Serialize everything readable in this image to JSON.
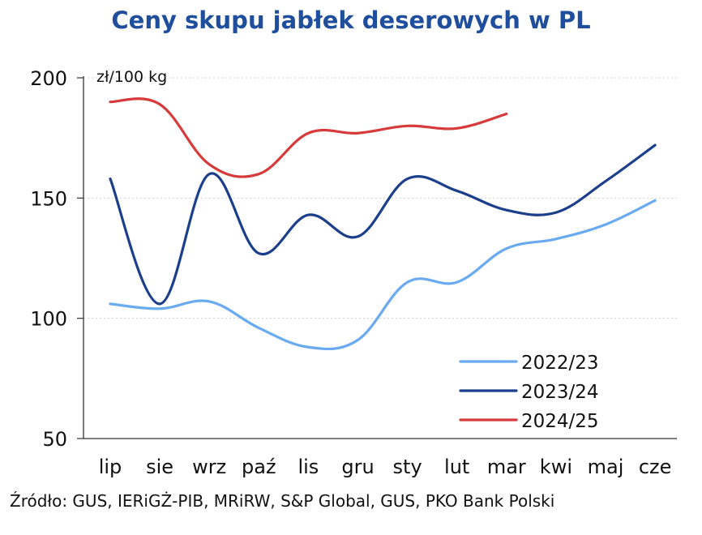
{
  "chart_data": {
    "type": "line",
    "title": "Ceny skupu jabłek deserowych w PL",
    "ylabel": "zł/100 kg",
    "xlabel": "",
    "categories": [
      "lip",
      "sie",
      "wrz",
      "paź",
      "lis",
      "gru",
      "sty",
      "lut",
      "mar",
      "kwi",
      "maj",
      "cze"
    ],
    "ylim": [
      50,
      200
    ],
    "yticks": [
      50,
      100,
      150,
      200
    ],
    "grid": true,
    "legend_position": "bottom-right",
    "series": [
      {
        "name": "2022/23",
        "color": "#6aaaf0",
        "values": [
          106,
          104,
          107,
          96,
          88,
          91,
          115,
          115,
          129,
          133,
          139,
          149
        ]
      },
      {
        "name": "2023/24",
        "color": "#1c3f8c",
        "values": [
          158,
          106,
          160,
          127,
          143,
          134,
          158,
          153,
          145,
          144,
          157,
          172
        ]
      },
      {
        "name": "2024/25",
        "color": "#d63a3a",
        "values": [
          190,
          189,
          164,
          160,
          177,
          177,
          180,
          179,
          185,
          null,
          null,
          null
        ]
      }
    ]
  },
  "source": "Źródło: GUS, IERiGŻ-PIB, MRiRW, S&P Global, GUS, PKO Bank Polski"
}
